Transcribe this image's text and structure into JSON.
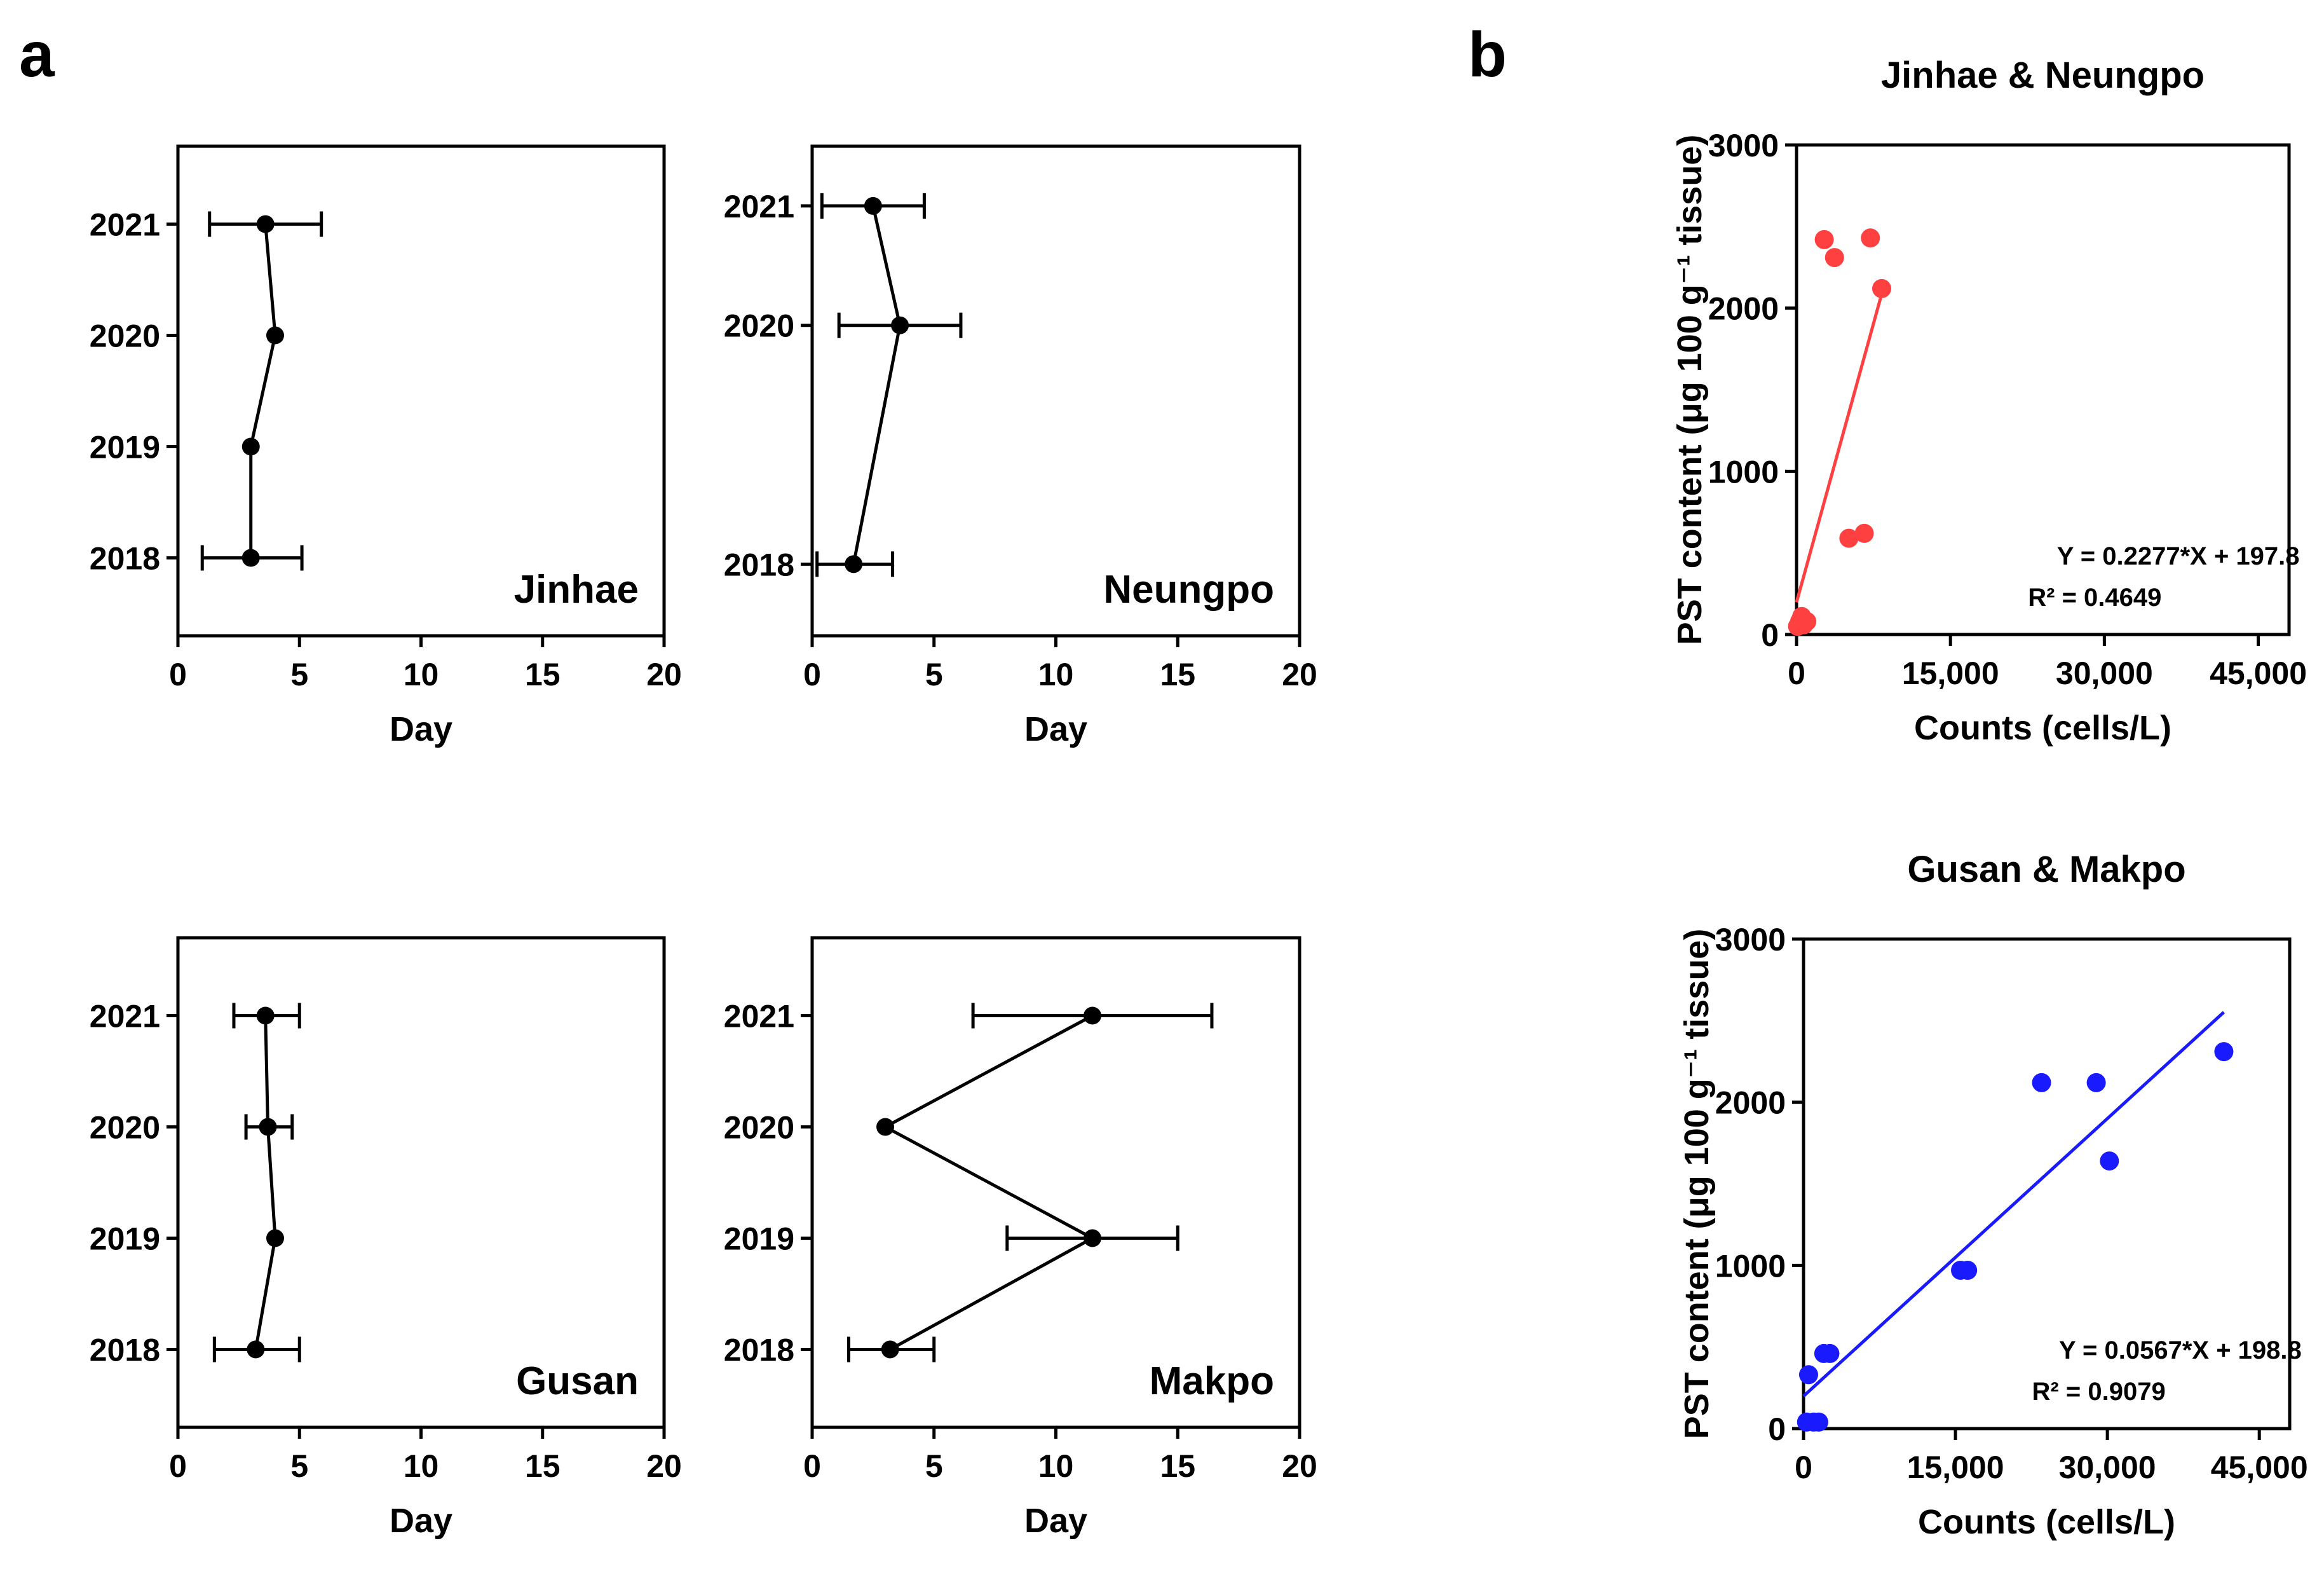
{
  "panel_labels": {
    "a": "a",
    "b": "b"
  },
  "chart_data": [
    {
      "id": "jinhae",
      "type": "scatter",
      "site_label": "Jinhae",
      "xlabel": "Day",
      "xlim": [
        0,
        20
      ],
      "xticks": [
        0,
        5,
        10,
        15,
        20
      ],
      "ylim": [
        2017.3,
        2021.7
      ],
      "yticks": [
        2018,
        2019,
        2020,
        2021
      ],
      "points": [
        {
          "year": 2018,
          "day": 3.0,
          "err_low": 1.0,
          "err_high": 5.1
        },
        {
          "year": 2019,
          "day": 3.0
        },
        {
          "year": 2020,
          "day": 4.0
        },
        {
          "year": 2021,
          "day": 3.6,
          "err_low": 1.3,
          "err_high": 5.9
        }
      ]
    },
    {
      "id": "neungpo",
      "type": "scatter",
      "site_label": "Neungpo",
      "xlabel": "Day",
      "xlim": [
        0,
        20
      ],
      "xticks": [
        0,
        5,
        10,
        15,
        20
      ],
      "ylim": [
        2017.4,
        2021.5
      ],
      "yticks": [
        2018,
        2020,
        2021
      ],
      "points": [
        {
          "year": 2018,
          "day": 1.7,
          "err_low": 0.2,
          "err_high": 3.3
        },
        {
          "year": 2020,
          "day": 3.6,
          "err_low": 1.1,
          "err_high": 6.1
        },
        {
          "year": 2021,
          "day": 2.5,
          "err_low": 0.4,
          "err_high": 4.6
        }
      ]
    },
    {
      "id": "gusan",
      "type": "scatter",
      "site_label": "Gusan",
      "xlabel": "Day",
      "xlim": [
        0,
        20
      ],
      "xticks": [
        0,
        5,
        10,
        15,
        20
      ],
      "ylim": [
        2017.3,
        2021.7
      ],
      "yticks": [
        2018,
        2019,
        2020,
        2021
      ],
      "points": [
        {
          "year": 2018,
          "day": 3.2,
          "err_low": 1.5,
          "err_high": 5.0
        },
        {
          "year": 2019,
          "day": 4.0
        },
        {
          "year": 2020,
          "day": 3.7,
          "err_low": 2.8,
          "err_high": 4.7
        },
        {
          "year": 2021,
          "day": 3.6,
          "err_low": 2.3,
          "err_high": 5.0
        }
      ]
    },
    {
      "id": "makpo",
      "type": "scatter",
      "site_label": "Makpo",
      "xlabel": "Day",
      "xlim": [
        0,
        20
      ],
      "xticks": [
        0,
        5,
        10,
        15,
        20
      ],
      "ylim": [
        2017.3,
        2021.7
      ],
      "yticks": [
        2018,
        2019,
        2020,
        2021
      ],
      "points": [
        {
          "year": 2018,
          "day": 3.2,
          "err_low": 1.5,
          "err_high": 5.0
        },
        {
          "year": 2019,
          "day": 11.5,
          "err_low": 8.0,
          "err_high": 15.0
        },
        {
          "year": 2020,
          "day": 3.0
        },
        {
          "year": 2021,
          "day": 11.5,
          "err_low": 6.6,
          "err_high": 16.4
        }
      ]
    },
    {
      "id": "jinhae-neungpo",
      "type": "scatter",
      "title": "Jinhae & Neungpo",
      "xlabel": "Counts (cells/L)",
      "ylabel": "PST content (μg 100 g⁻¹ tissue)",
      "xlim": [
        0,
        48000
      ],
      "ylim": [
        0,
        3000
      ],
      "xticks": [
        0,
        15000,
        30000,
        45000
      ],
      "xtick_labels": [
        "0",
        "15,000",
        "30,000",
        "45,000"
      ],
      "yticks": [
        0,
        1000,
        2000,
        3000
      ],
      "color": "#ff4040",
      "points": [
        [
          2700,
          2420
        ],
        [
          3700,
          2310
        ],
        [
          7200,
          2430
        ],
        [
          8300,
          2120
        ],
        [
          5100,
          590
        ],
        [
          6600,
          620
        ],
        [
          300,
          80
        ],
        [
          700,
          60
        ],
        [
          1000,
          80
        ],
        [
          100,
          50
        ],
        [
          500,
          110
        ]
      ],
      "fit": {
        "slope": 0.2277,
        "intercept": 197.8,
        "x_range": [
          0,
          8300
        ]
      },
      "equation": "Y = 0.2277*X + 197.8",
      "r2": "R² = 0.4649"
    },
    {
      "id": "gusan-makpo",
      "type": "scatter",
      "title": "Gusan & Makpo",
      "xlabel": "Counts (cells/L)",
      "ylabel": "PST content (μg 100 g⁻¹ tissue)",
      "xlim": [
        0,
        48000
      ],
      "ylim": [
        0,
        3000
      ],
      "xticks": [
        0,
        15000,
        30000,
        45000
      ],
      "xtick_labels": [
        "0",
        "15,000",
        "30,000",
        "45,000"
      ],
      "yticks": [
        0,
        1000,
        2000,
        3000
      ],
      "color": "#1a1aff",
      "points": [
        [
          41500,
          2310
        ],
        [
          23500,
          2120
        ],
        [
          28900,
          2120
        ],
        [
          30200,
          1640
        ],
        [
          15500,
          970
        ],
        [
          16200,
          970
        ],
        [
          2000,
          460
        ],
        [
          2600,
          460
        ],
        [
          500,
          330
        ],
        [
          300,
          40
        ],
        [
          1000,
          40
        ],
        [
          1500,
          40
        ]
      ],
      "fit": {
        "slope": 0.0567,
        "intercept": 198.8,
        "x_range": [
          0,
          41500
        ]
      },
      "equation": "Y = 0.0567*X + 198.8",
      "r2": "R² = 0.9079"
    }
  ]
}
